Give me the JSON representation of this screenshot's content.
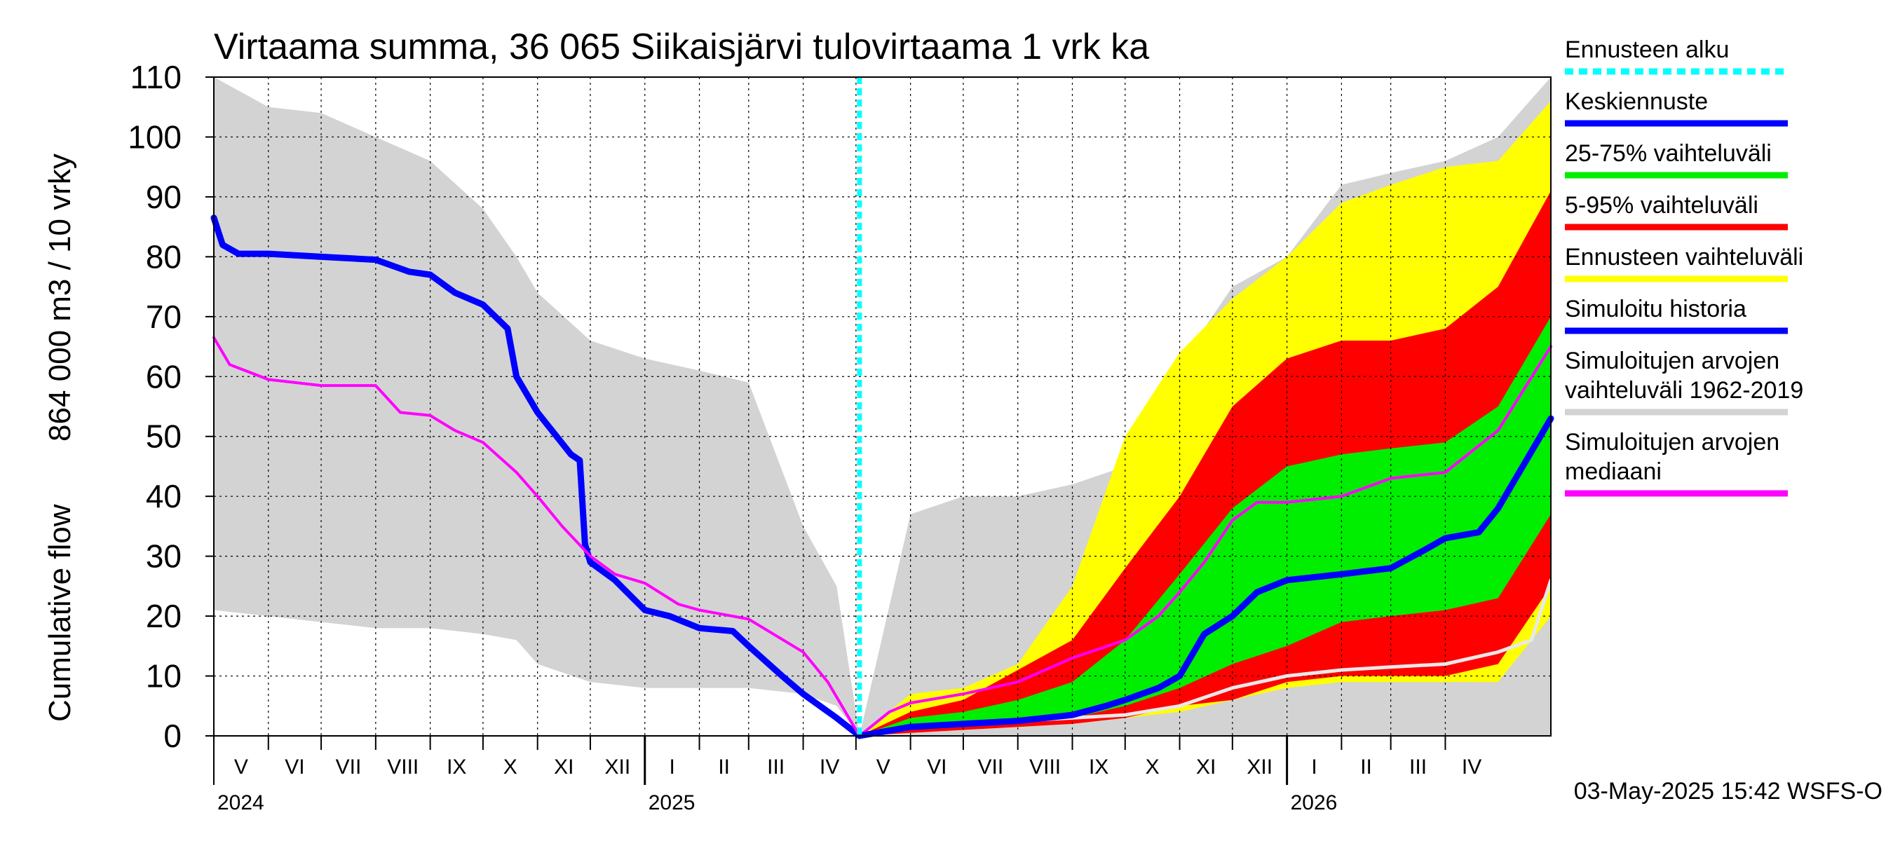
{
  "chart_data": {
    "type": "area",
    "title": "Virtaama summa, 36 065 Siikaisjärvi tulovirtaama 1 vrk ka",
    "ylabel_lines": [
      "Cumulative flow",
      "864 000 m3 / 10 vrky"
    ],
    "ylim": [
      0,
      110
    ],
    "yticks": [
      0,
      10,
      20,
      30,
      40,
      50,
      60,
      70,
      80,
      90,
      100,
      110
    ],
    "grid": true,
    "x_start": "2024-05-01",
    "x_end": "2026-05-31",
    "month_labels": [
      {
        "month": "2024-05",
        "label": "V"
      },
      {
        "month": "2024-06",
        "label": "VI"
      },
      {
        "month": "2024-07",
        "label": "VII"
      },
      {
        "month": "2024-08",
        "label": "VIII"
      },
      {
        "month": "2024-09",
        "label": "IX"
      },
      {
        "month": "2024-10",
        "label": "X"
      },
      {
        "month": "2024-11",
        "label": "XI"
      },
      {
        "month": "2024-12",
        "label": "XII"
      },
      {
        "month": "2025-01",
        "label": "I"
      },
      {
        "month": "2025-02",
        "label": "II"
      },
      {
        "month": "2025-03",
        "label": "III"
      },
      {
        "month": "2025-04",
        "label": "IV"
      },
      {
        "month": "2025-05",
        "label": "V"
      },
      {
        "month": "2025-06",
        "label": "VI"
      },
      {
        "month": "2025-07",
        "label": "VII"
      },
      {
        "month": "2025-08",
        "label": "VIII"
      },
      {
        "month": "2025-09",
        "label": "IX"
      },
      {
        "month": "2025-10",
        "label": "X"
      },
      {
        "month": "2025-11",
        "label": "XI"
      },
      {
        "month": "2025-12",
        "label": "XII"
      },
      {
        "month": "2026-01",
        "label": "I"
      },
      {
        "month": "2026-02",
        "label": "II"
      },
      {
        "month": "2026-03",
        "label": "III"
      },
      {
        "month": "2026-04",
        "label": "IV"
      }
    ],
    "year_labels": [
      {
        "date": "2024-05-01",
        "label": "2024"
      },
      {
        "date": "2025-01-01",
        "label": "2025"
      },
      {
        "date": "2026-01-01",
        "label": "2026"
      }
    ],
    "forecast_start": "2025-05-03",
    "bands": [
      {
        "name": "Simuloitujen arvojen vaihteluväli 1962-2019",
        "color": "#d3d3d3",
        "x": [
          "2024-05-01",
          "2024-06-01",
          "2024-07-01",
          "2024-08-01",
          "2024-09-01",
          "2024-10-01",
          "2024-10-20",
          "2024-11-01",
          "2024-12-01",
          "2025-01-01",
          "2025-02-01",
          "2025-03-01",
          "2025-04-01",
          "2025-04-20",
          "2025-05-03",
          "2025-06-01",
          "2025-07-01",
          "2025-08-01",
          "2025-09-01",
          "2025-10-01",
          "2025-11-01",
          "2025-12-01",
          "2026-01-01",
          "2026-02-01",
          "2026-03-01",
          "2026-04-01",
          "2026-05-01",
          "2026-05-31"
        ],
        "upper": [
          110,
          105,
          104,
          100,
          96,
          88,
          80,
          74,
          66,
          63,
          61,
          59,
          35,
          25,
          0,
          37,
          40,
          40,
          42,
          45,
          62,
          75,
          80,
          92,
          94,
          96,
          100,
          110
        ],
        "lower": [
          21,
          20,
          19,
          18,
          18,
          17,
          16,
          12,
          9,
          8,
          8,
          8,
          7,
          5,
          0,
          0,
          0,
          0,
          0,
          0,
          0,
          0,
          0,
          0,
          0,
          0,
          0,
          0
        ]
      },
      {
        "name": "Ennusteen vaihteluväli",
        "color": "#ffff00",
        "x": [
          "2025-05-03",
          "2025-06-01",
          "2025-07-01",
          "2025-08-01",
          "2025-09-01",
          "2025-10-01",
          "2025-11-01",
          "2025-12-01",
          "2026-01-01",
          "2026-02-01",
          "2026-03-01",
          "2026-04-01",
          "2026-05-01",
          "2026-05-31"
        ],
        "upper": [
          0,
          7,
          8,
          12,
          25,
          50,
          64,
          73,
          80,
          89,
          92,
          95,
          96,
          106
        ],
        "lower": [
          0,
          0.5,
          1,
          1.5,
          2,
          3,
          4,
          6,
          8,
          9,
          9,
          9,
          9,
          20
        ]
      },
      {
        "name": "5-95% vaihteluväli",
        "color": "#ff0000",
        "x": [
          "2025-05-03",
          "2025-06-01",
          "2025-07-01",
          "2025-08-01",
          "2025-09-01",
          "2025-10-01",
          "2025-11-01",
          "2025-12-01",
          "2026-01-01",
          "2026-02-01",
          "2026-03-01",
          "2026-04-01",
          "2026-05-01",
          "2026-05-31"
        ],
        "upper": [
          0,
          4,
          6,
          11,
          16,
          28,
          40,
          55,
          63,
          66,
          66,
          68,
          75,
          91
        ],
        "lower": [
          0,
          0.5,
          1,
          1.5,
          2,
          3,
          5,
          6,
          9,
          10,
          10,
          10,
          12,
          25
        ]
      },
      {
        "name": "25-75% vaihteluväli",
        "color": "#00ee00",
        "x": [
          "2025-05-03",
          "2025-06-01",
          "2025-07-01",
          "2025-08-01",
          "2025-09-01",
          "2025-10-01",
          "2025-11-01",
          "2025-12-01",
          "2026-01-01",
          "2026-02-01",
          "2026-03-01",
          "2026-04-01",
          "2026-05-01",
          "2026-05-31"
        ],
        "upper": [
          0,
          3,
          4,
          6,
          9,
          16,
          27,
          38,
          45,
          47,
          48,
          49,
          55,
          70
        ],
        "lower": [
          0,
          1,
          1.5,
          2,
          3,
          5,
          8,
          12,
          15,
          19,
          20,
          21,
          23,
          37
        ]
      }
    ],
    "series": [
      {
        "name": "Simuloitu historia",
        "color": "#0000ff",
        "width": 9,
        "x": [
          "2024-05-01",
          "2024-05-06",
          "2024-05-15",
          "2024-06-01",
          "2024-07-01",
          "2024-08-01",
          "2024-08-20",
          "2024-09-01",
          "2024-09-15",
          "2024-10-01",
          "2024-10-15",
          "2024-10-20",
          "2024-11-01",
          "2024-11-20",
          "2024-11-25",
          "2024-11-28",
          "2024-12-01",
          "2024-12-15",
          "2025-01-01",
          "2025-01-15",
          "2025-02-01",
          "2025-02-20",
          "2025-03-01",
          "2025-03-20",
          "2025-04-01",
          "2025-04-20",
          "2025-05-03"
        ],
        "y": [
          86.5,
          82,
          80.5,
          80.5,
          80,
          79.5,
          77.5,
          77,
          74,
          72,
          68,
          60,
          54,
          47,
          46,
          32,
          29,
          26,
          21,
          20,
          18,
          17.5,
          15,
          10,
          7,
          3,
          0
        ]
      },
      {
        "name": "Simuloitujen arvojen mediaani",
        "color": "#ff00ff",
        "width": 4,
        "x": [
          "2024-05-01",
          "2024-05-10",
          "2024-06-01",
          "2024-07-01",
          "2024-08-01",
          "2024-08-15",
          "2024-09-01",
          "2024-09-15",
          "2024-10-01",
          "2024-10-20",
          "2024-11-01",
          "2024-11-15",
          "2024-12-01",
          "2024-12-15",
          "2025-01-01",
          "2025-01-20",
          "2025-02-01",
          "2025-03-01",
          "2025-04-01",
          "2025-04-15",
          "2025-05-03"
        ],
        "y": [
          66.5,
          62,
          59.5,
          58.5,
          58.5,
          54,
          53.5,
          51,
          49,
          44,
          40,
          35,
          30,
          27,
          25.5,
          22,
          21,
          19.5,
          14,
          9,
          0
        ]
      },
      {
        "name": "Simuloitujen arvojen mediaani",
        "color": "#ff00ff",
        "width": 4,
        "x": [
          "2025-05-03",
          "2025-05-20",
          "2025-06-01",
          "2025-07-01",
          "2025-08-01",
          "2025-09-01",
          "2025-10-01",
          "2025-10-20",
          "2025-11-01",
          "2025-11-15",
          "2025-12-01",
          "2025-12-15",
          "2026-01-01",
          "2026-02-01",
          "2026-03-01",
          "2026-04-01",
          "2026-05-01",
          "2026-05-31"
        ],
        "y": [
          0,
          4,
          5.5,
          7,
          9,
          13,
          16,
          20,
          24,
          29,
          36,
          39,
          39,
          40,
          43,
          44,
          51,
          65
        ]
      },
      {
        "name": "Minimum",
        "color": "#e8e8e8",
        "width": 5,
        "x": [
          "2025-05-03",
          "2025-06-01",
          "2025-07-01",
          "2025-08-01",
          "2025-09-01",
          "2025-10-01",
          "2025-11-01",
          "2025-12-01",
          "2026-01-01",
          "2026-02-01",
          "2026-03-01",
          "2026-04-01",
          "2026-05-01",
          "2026-05-20",
          "2026-05-31"
        ],
        "y": [
          0,
          1.5,
          2,
          2.5,
          3,
          3.5,
          5,
          8,
          10,
          11,
          11.5,
          12,
          14,
          16,
          26
        ]
      },
      {
        "name": "Keskiennuste",
        "color": "#0000ff",
        "width": 9,
        "x": [
          "2025-05-03",
          "2025-06-01",
          "2025-07-01",
          "2025-08-01",
          "2025-09-01",
          "2025-09-20",
          "2025-10-01",
          "2025-10-20",
          "2025-11-01",
          "2025-11-15",
          "2025-12-01",
          "2025-12-15",
          "2026-01-01",
          "2026-02-01",
          "2026-03-01",
          "2026-03-20",
          "2026-04-01",
          "2026-04-20",
          "2026-05-01",
          "2026-05-15",
          "2026-05-31"
        ],
        "y": [
          0,
          1.5,
          2,
          2.5,
          3.5,
          5,
          6,
          8,
          10,
          17,
          20,
          24,
          26,
          27,
          28,
          31,
          33,
          34,
          38,
          45,
          53
        ]
      }
    ],
    "legend": [
      {
        "label": "Ennusteen alku",
        "color": "#00ffff",
        "style": "dotted"
      },
      {
        "label": "Keskiennuste",
        "color": "#0000ff",
        "style": "solid"
      },
      {
        "label": "25-75% vaihteluväli",
        "color": "#00ee00",
        "style": "solid"
      },
      {
        "label": "5-95% vaihteluväli",
        "color": "#ff0000",
        "style": "solid"
      },
      {
        "label": "Ennusteen vaihteluväli",
        "color": "#ffff00",
        "style": "solid"
      },
      {
        "label": "Simuloitu historia",
        "color": "#0000ff",
        "style": "solid"
      },
      {
        "label": "Simuloitujen arvojen vaihteluväli 1962-2019",
        "label_lines": [
          "Simuloitujen arvojen",
          "vaihteluväli 1962-2019"
        ],
        "color": "#d3d3d3",
        "style": "solid"
      },
      {
        "label": "Simuloitujen arvojen mediaani",
        "label_lines": [
          "Simuloitujen arvojen",
          "mediaani"
        ],
        "color": "#ff00ff",
        "style": "solid"
      }
    ],
    "footer": "03-May-2025 15:42 WSFS-O"
  }
}
